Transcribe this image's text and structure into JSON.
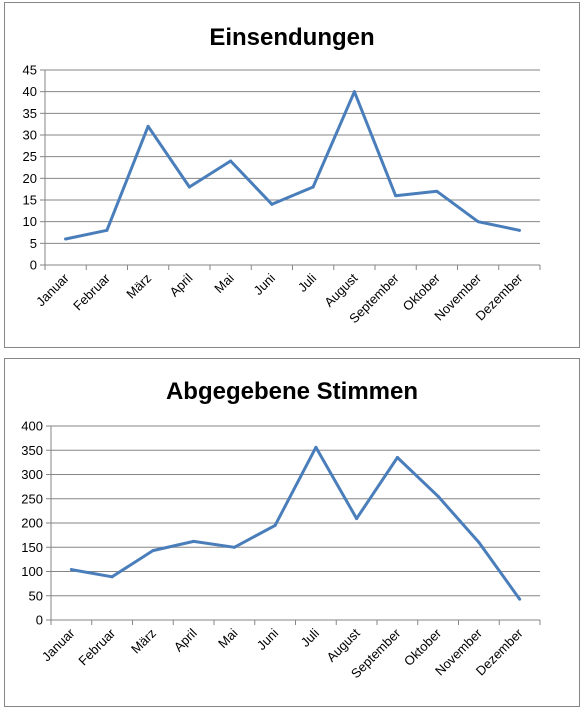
{
  "chart_data": [
    {
      "type": "line",
      "title": "Einsendungen",
      "categories": [
        "Januar",
        "Februar",
        "März",
        "April",
        "Mai",
        "Juni",
        "Juli",
        "August",
        "September",
        "Oktober",
        "November",
        "Dezember"
      ],
      "series": [
        {
          "values": [
            6,
            8,
            32,
            18,
            24,
            14,
            18,
            40,
            16,
            17,
            10,
            8
          ]
        }
      ],
      "ylim": [
        0,
        45
      ],
      "yticks": [
        0,
        5,
        10,
        15,
        20,
        25,
        30,
        35,
        40,
        45
      ],
      "grid": true,
      "legend": "none",
      "line_color": "#4a7ebb"
    },
    {
      "type": "line",
      "title": "Abgegebene Stimmen",
      "categories": [
        "Januar",
        "Februar",
        "März",
        "April",
        "Mai",
        "Juni",
        "Juli",
        "August",
        "September",
        "Oktober",
        "November",
        "Dezember"
      ],
      "series": [
        {
          "values": [
            104,
            89,
            143,
            162,
            150,
            195,
            356,
            209,
            335,
            255,
            160,
            43
          ]
        }
      ],
      "ylim": [
        0,
        400
      ],
      "yticks": [
        0,
        50,
        100,
        150,
        200,
        250,
        300,
        350,
        400
      ],
      "grid": true,
      "legend": "none",
      "line_color": "#4a7ebb"
    }
  ]
}
